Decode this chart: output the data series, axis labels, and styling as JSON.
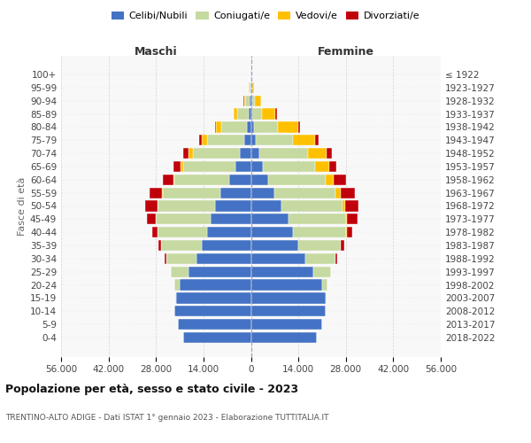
{
  "age_groups": [
    "0-4",
    "5-9",
    "10-14",
    "15-19",
    "20-24",
    "25-29",
    "30-34",
    "35-39",
    "40-44",
    "45-49",
    "50-54",
    "55-59",
    "60-64",
    "65-69",
    "70-74",
    "75-79",
    "80-84",
    "85-89",
    "90-94",
    "95-99",
    "100+"
  ],
  "birth_years": [
    "2018-2022",
    "2013-2017",
    "2008-2012",
    "2003-2007",
    "1998-2002",
    "1993-1997",
    "1988-1992",
    "1983-1987",
    "1978-1982",
    "1973-1977",
    "1968-1972",
    "1963-1967",
    "1958-1962",
    "1953-1957",
    "1948-1952",
    "1943-1947",
    "1938-1942",
    "1933-1937",
    "1928-1932",
    "1923-1927",
    "≤ 1922"
  ],
  "male_celibe": [
    20000,
    21500,
    22500,
    22000,
    21000,
    18500,
    16000,
    14500,
    13000,
    12000,
    10500,
    9000,
    6500,
    4500,
    3200,
    2000,
    1200,
    600,
    400,
    200,
    100
  ],
  "male_coniugato": [
    0,
    0,
    0,
    200,
    1500,
    5000,
    9000,
    12000,
    14500,
    16000,
    17000,
    17000,
    16000,
    15500,
    14000,
    11000,
    7500,
    3500,
    1200,
    300,
    50
  ],
  "male_vedovo": [
    0,
    0,
    0,
    0,
    5,
    5,
    10,
    20,
    30,
    50,
    100,
    200,
    400,
    700,
    1200,
    1500,
    1500,
    900,
    400,
    100,
    20
  ],
  "male_divorziato": [
    0,
    0,
    0,
    10,
    50,
    150,
    400,
    800,
    1500,
    2500,
    3500,
    3800,
    3200,
    2200,
    1500,
    800,
    500,
    200,
    100,
    50,
    10
  ],
  "female_celibe": [
    19500,
    21000,
    22000,
    22000,
    21000,
    18500,
    16000,
    14000,
    12500,
    11000,
    9000,
    7000,
    5000,
    3500,
    2400,
    1500,
    900,
    500,
    300,
    150,
    100
  ],
  "female_coniugata": [
    0,
    0,
    0,
    200,
    1500,
    5000,
    9000,
    12500,
    15500,
    17000,
    18000,
    18000,
    17000,
    15500,
    14500,
    11000,
    7000,
    2800,
    800,
    200,
    50
  ],
  "female_vedova": [
    0,
    0,
    0,
    0,
    10,
    20,
    50,
    100,
    200,
    400,
    800,
    1500,
    2500,
    4000,
    5500,
    6500,
    6000,
    4000,
    1800,
    500,
    100
  ],
  "female_divorziata": [
    0,
    0,
    0,
    10,
    50,
    150,
    500,
    900,
    1800,
    3000,
    4000,
    4200,
    3500,
    2200,
    1500,
    900,
    600,
    300,
    150,
    50,
    10
  ],
  "colors": {
    "celibe": "#4472c4",
    "coniugato": "#c5d9a0",
    "vedovo": "#ffc000",
    "divorziato": "#c0000b"
  },
  "xlim": 56000,
  "title": "Popolazione per età, sesso e stato civile - 2023",
  "subtitle": "TRENTINO-ALTO ADIGE - Dati ISTAT 1° gennaio 2023 - Elaborazione TUTTITALIA.IT",
  "ylabel_left": "Fasce di età",
  "xlabel_maschi": "Maschi",
  "xlabel_femmine": "Femmine",
  "legend_labels": [
    "Celibi/Nubili",
    "Coniugati/e",
    "Vedovi/e",
    "Divorziati/e"
  ],
  "bg_color": "#ffffff",
  "plot_bg": "#f8f8f8",
  "grid_color": "#cccccc"
}
